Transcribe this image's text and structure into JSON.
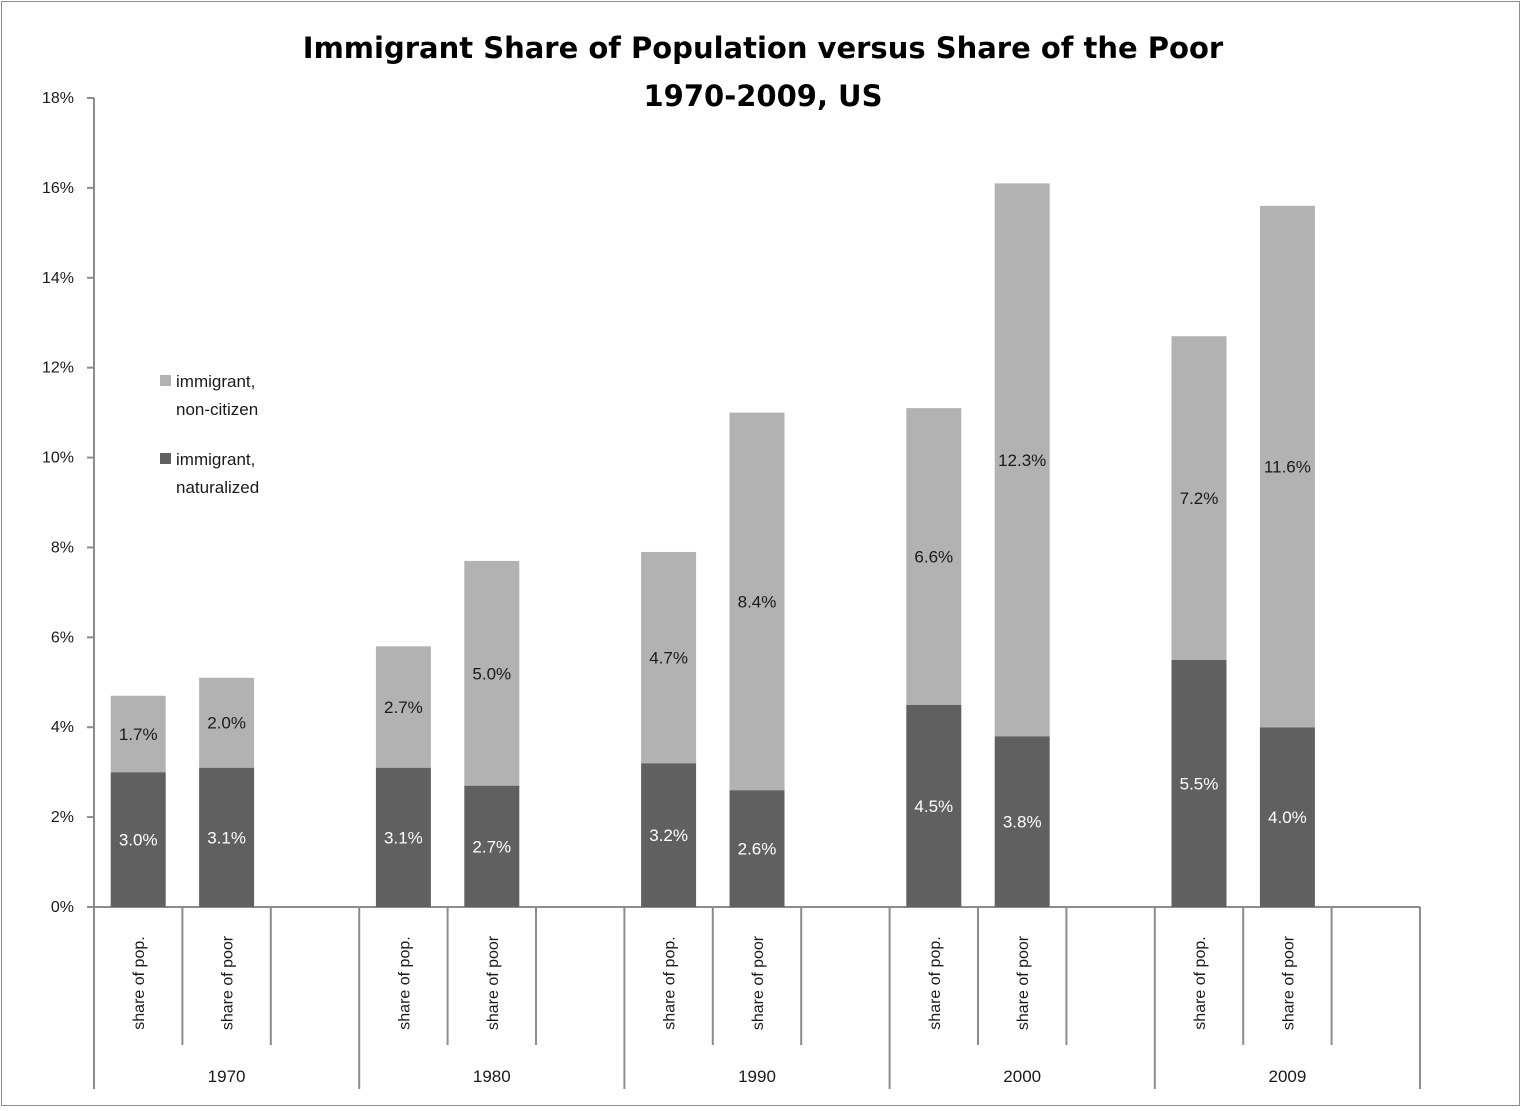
{
  "chart_data": {
    "type": "bar",
    "stacked": true,
    "title": "Immigrant Share of Population versus Share of the Poor",
    "subtitle": "1970-2009, US",
    "groups": [
      "1970",
      "1980",
      "1990",
      "2000",
      "2009"
    ],
    "subcategories": [
      "share of pop.",
      "share of poor"
    ],
    "ylim": [
      0,
      18
    ],
    "yticks": [
      0,
      2,
      4,
      6,
      8,
      10,
      12,
      14,
      16,
      18
    ],
    "ytick_labels": [
      "0%",
      "2%",
      "4%",
      "6%",
      "8%",
      "10%",
      "12%",
      "14%",
      "16%",
      "18%"
    ],
    "grid": false,
    "legend_position": "left-middle",
    "series": [
      {
        "name": "immigrant, naturalized",
        "color": "#606060",
        "label_color": "#ffffff",
        "values": [
          3.0,
          3.1,
          3.1,
          2.7,
          3.2,
          2.6,
          4.5,
          3.8,
          5.5,
          4.0
        ],
        "labels": [
          "3.0%",
          "3.1%",
          "3.1%",
          "2.7%",
          "3.2%",
          "2.6%",
          "4.5%",
          "3.8%",
          "5.5%",
          "4.0%"
        ]
      },
      {
        "name": "immigrant, non-citizen",
        "color": "#b2b2b2",
        "label_color": "#1a1a1a",
        "values": [
          1.7,
          2.0,
          2.7,
          5.0,
          4.7,
          8.4,
          6.6,
          12.3,
          7.2,
          11.6
        ],
        "labels": [
          "1.7%",
          "2.0%",
          "2.7%",
          "5.0%",
          "4.7%",
          "8.4%",
          "6.6%",
          "12.3%",
          "7.2%",
          "11.6%"
        ]
      }
    ],
    "legend": [
      {
        "lines": [
          "immigrant,",
          "non-citizen"
        ],
        "color": "#b2b2b2"
      },
      {
        "lines": [
          "immigrant,",
          "naturalized"
        ],
        "color": "#606060"
      }
    ]
  }
}
